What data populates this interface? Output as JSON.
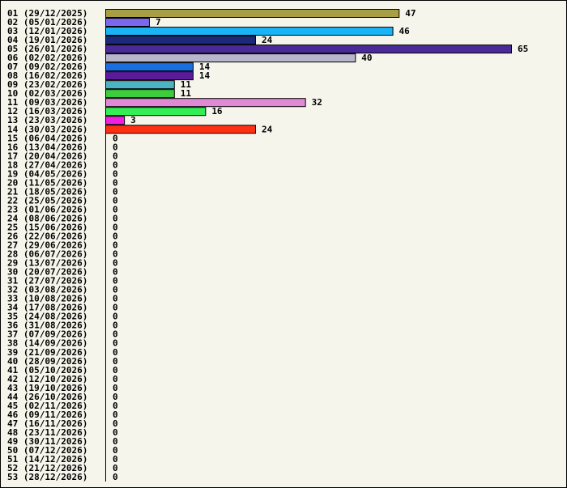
{
  "chart_data": {
    "type": "bar",
    "orientation": "horizontal",
    "categories": [
      "01 (29/12/2025)",
      "02 (05/01/2026)",
      "03 (12/01/2026)",
      "04 (19/01/2026)",
      "05 (26/01/2026)",
      "06 (02/02/2026)",
      "07 (09/02/2026)",
      "08 (16/02/2026)",
      "09 (23/02/2026)",
      "10 (02/03/2026)",
      "11 (09/03/2026)",
      "12 (16/03/2026)",
      "13 (23/03/2026)",
      "14 (30/03/2026)",
      "15 (06/04/2026)",
      "16 (13/04/2026)",
      "17 (20/04/2026)",
      "18 (27/04/2026)",
      "19 (04/05/2026)",
      "20 (11/05/2026)",
      "21 (18/05/2026)",
      "22 (25/05/2026)",
      "23 (01/06/2026)",
      "24 (08/06/2026)",
      "25 (15/06/2026)",
      "26 (22/06/2026)",
      "27 (29/06/2026)",
      "28 (06/07/2026)",
      "29 (13/07/2026)",
      "30 (20/07/2026)",
      "31 (27/07/2026)",
      "32 (03/08/2026)",
      "33 (10/08/2026)",
      "34 (17/08/2026)",
      "35 (24/08/2026)",
      "36 (31/08/2026)",
      "37 (07/09/2026)",
      "38 (14/09/2026)",
      "39 (21/09/2026)",
      "40 (28/09/2026)",
      "41 (05/10/2026)",
      "42 (12/10/2026)",
      "43 (19/10/2026)",
      "44 (26/10/2026)",
      "45 (02/11/2026)",
      "46 (09/11/2026)",
      "47 (16/11/2026)",
      "48 (23/11/2026)",
      "49 (30/11/2026)",
      "50 (07/12/2026)",
      "51 (14/12/2026)",
      "52 (21/12/2026)",
      "53 (28/12/2026)"
    ],
    "values": [
      47,
      7,
      46,
      24,
      65,
      40,
      14,
      14,
      11,
      11,
      32,
      16,
      3,
      24,
      0,
      0,
      0,
      0,
      0,
      0,
      0,
      0,
      0,
      0,
      0,
      0,
      0,
      0,
      0,
      0,
      0,
      0,
      0,
      0,
      0,
      0,
      0,
      0,
      0,
      0,
      0,
      0,
      0,
      0,
      0,
      0,
      0,
      0,
      0,
      0,
      0,
      0,
      0
    ],
    "colors": [
      "#a89f45",
      "#7b68ee",
      "#1ab3f5",
      "#1b2a7a",
      "#4a2a99",
      "#b8b6cc",
      "#1a6fe0",
      "#5b1a99",
      "#4bb3c2",
      "#3ccc3c",
      "#e08ad6",
      "#33ee55",
      "#f020e0",
      "#ff3012"
    ],
    "xlim": [
      0,
      65
    ],
    "title": "",
    "xlabel": "",
    "ylabel": "",
    "grid": false,
    "legend": "none"
  }
}
